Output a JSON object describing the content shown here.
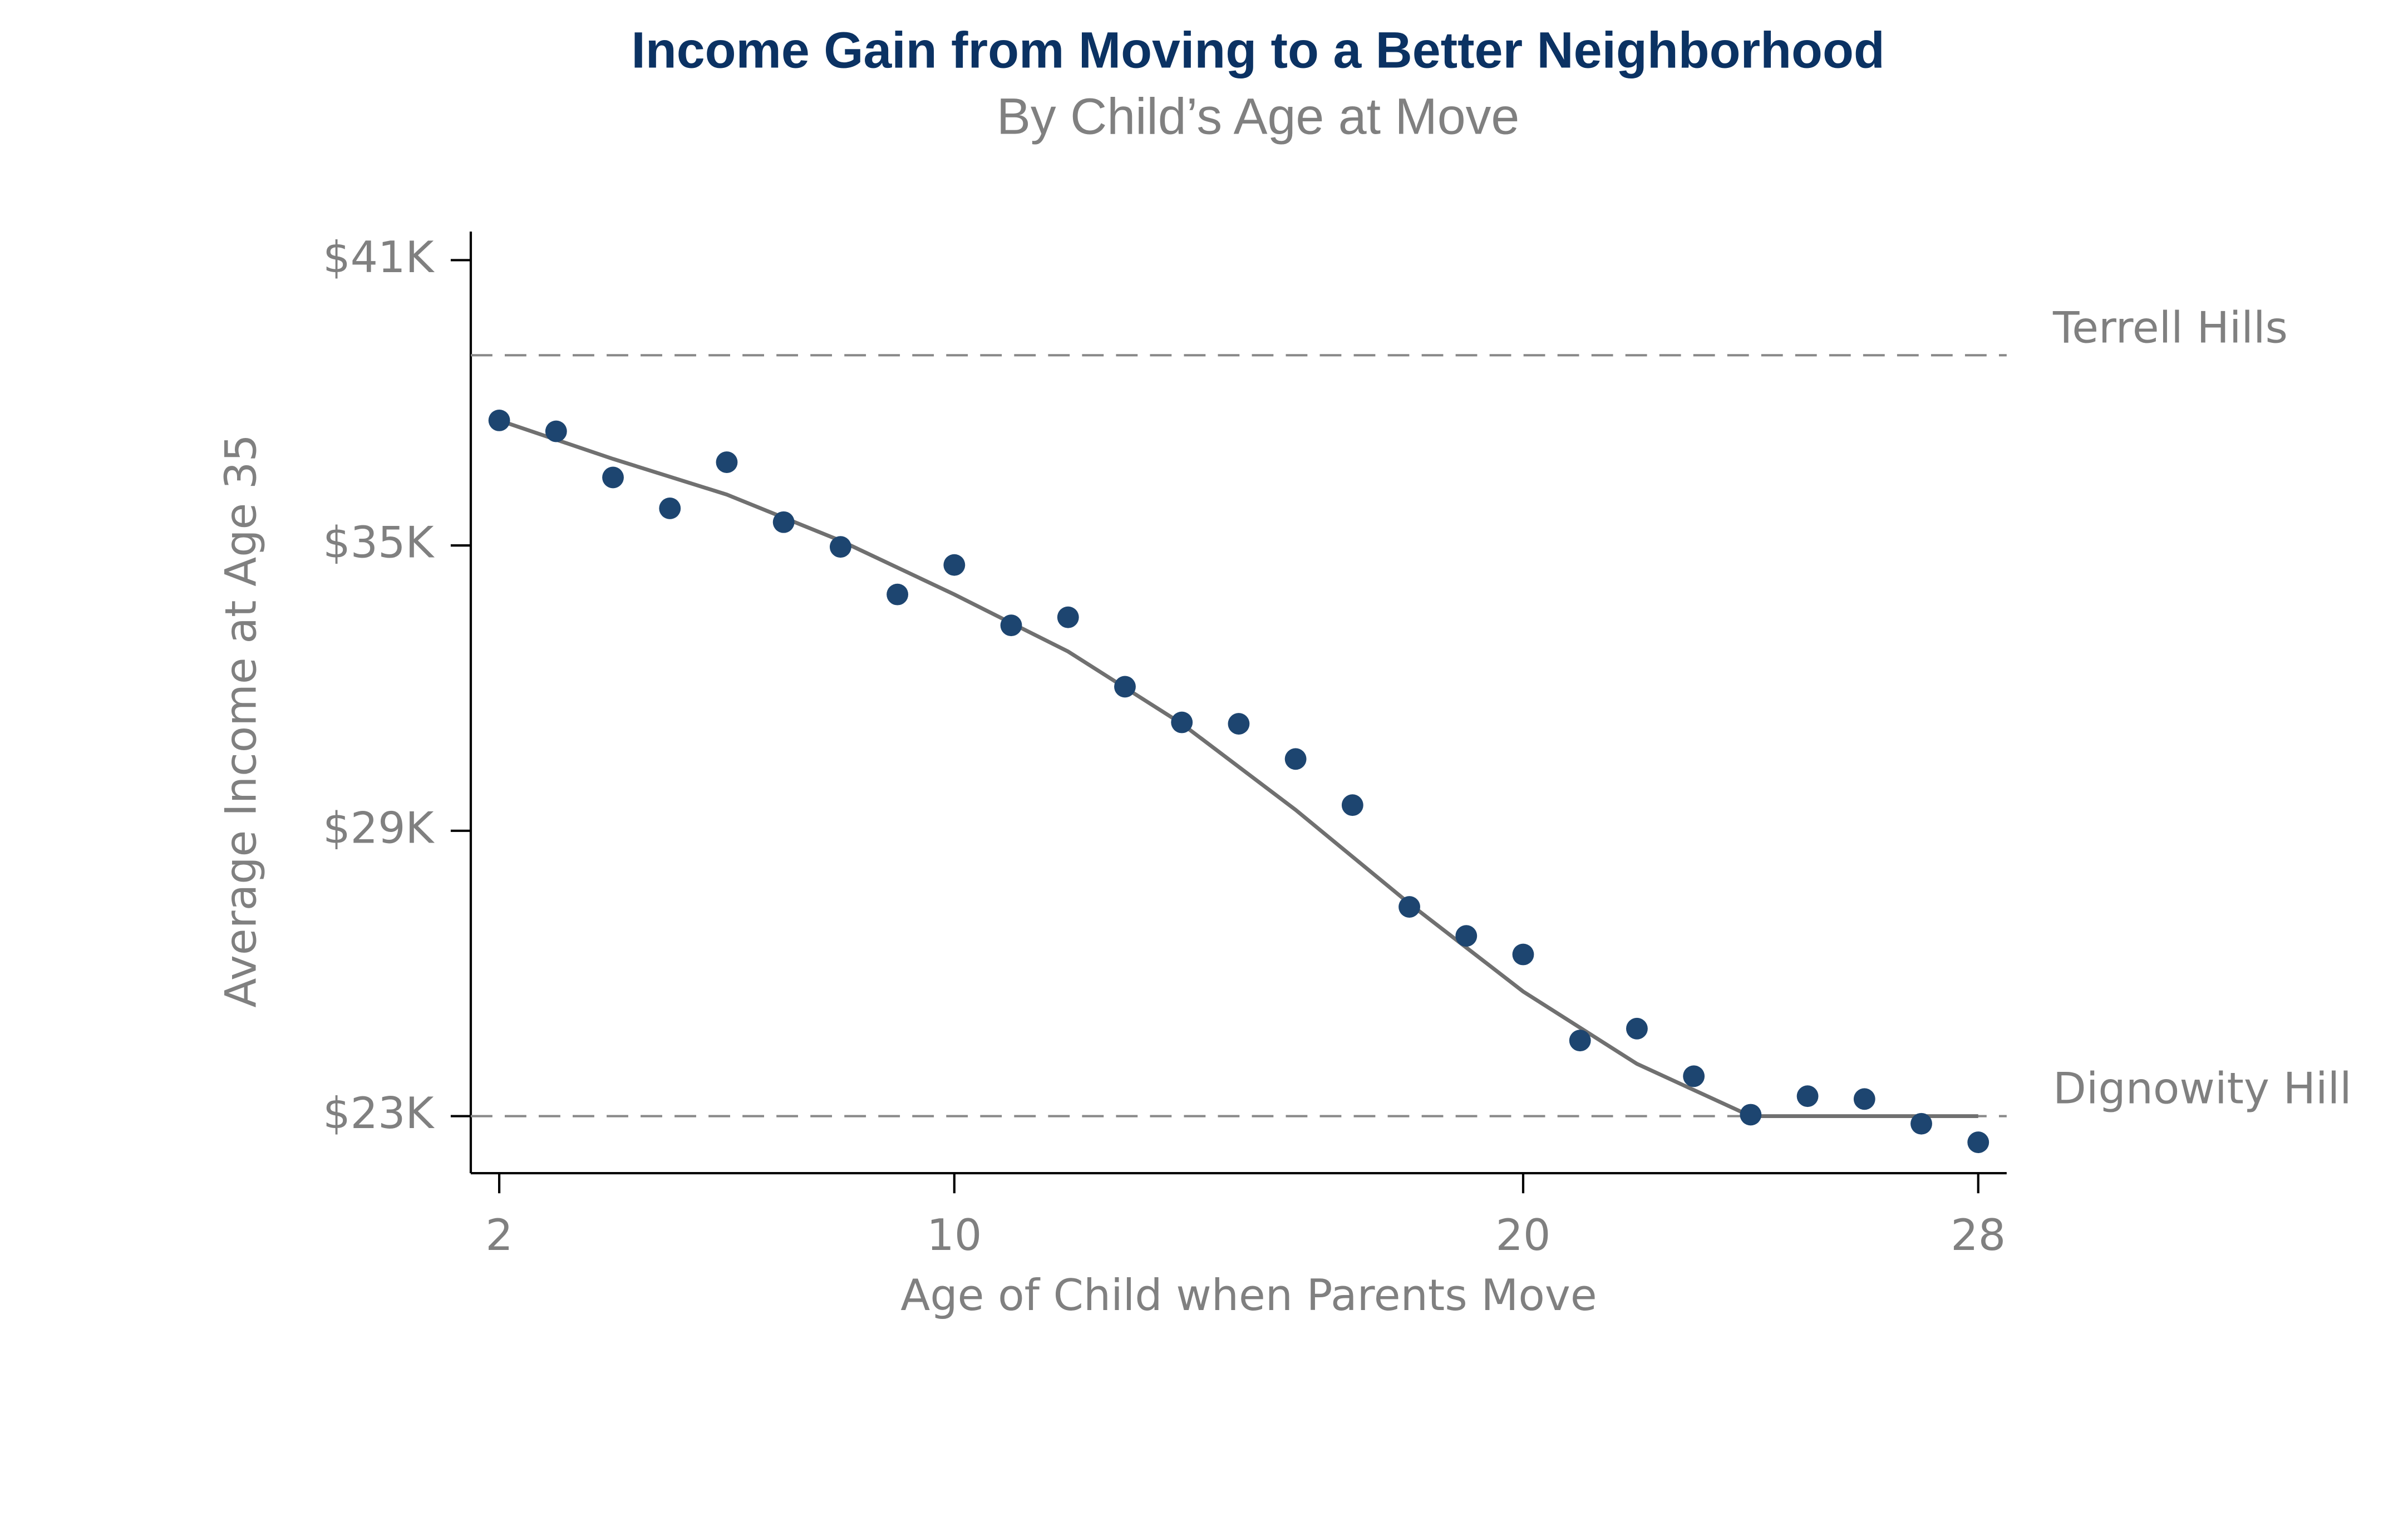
{
  "chart_data": {
    "type": "scatter",
    "title": "Income Gain from Moving to a Better Neighborhood",
    "subtitle": "By Child’s Age at Move",
    "xlabel": "Age of Child when Parents Move",
    "ylabel": "Average Income at Age 35",
    "x": [
      2,
      3,
      4,
      5,
      6,
      7,
      8,
      9,
      10,
      11,
      12,
      13,
      14,
      15,
      16,
      17,
      18,
      19,
      20,
      21,
      22,
      23,
      24,
      25,
      26,
      27,
      28
    ],
    "series": [
      {
        "color": "#1d4570",
        "values": [
          37630,
          37400,
          36430,
          35780,
          36750,
          35490,
          34970,
          33970,
          34590,
          33320,
          33490,
          32030,
          31280,
          31250,
          30510,
          29540,
          27400,
          26790,
          26400,
          24590,
          24840,
          23840,
          23030,
          23420,
          23360,
          22840,
          22450
        ]
      }
    ],
    "fit": {
      "color": "#707070",
      "x": [
        2,
        4,
        6,
        8,
        10,
        12,
        14,
        16,
        18,
        20,
        22,
        24,
        26,
        28
      ],
      "values": [
        37630,
        36820,
        36070,
        35100,
        33970,
        32770,
        31250,
        29440,
        27470,
        25620,
        24100,
        23000,
        23000,
        23000
      ]
    },
    "reference_lines": [
      {
        "label": "Terrell Hills",
        "value": 39000
      },
      {
        "label": "Dignowity Hill",
        "value": 23000
      }
    ],
    "xlim": [
      1.5,
      28.5
    ],
    "xticks": [
      2,
      10,
      20,
      28
    ],
    "ylim": [
      21800,
      41600
    ],
    "yticks": [
      {
        "value": 23000,
        "label": "$23K"
      },
      {
        "value": 29000,
        "label": "$29K"
      },
      {
        "value": 35000,
        "label": "$35K"
      },
      {
        "value": 41000,
        "label": "$41K"
      }
    ],
    "grid": false
  }
}
